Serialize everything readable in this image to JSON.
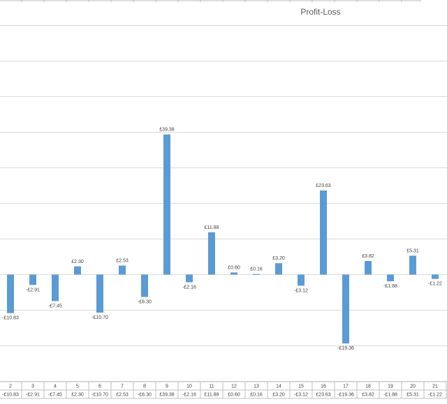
{
  "chart_data": {
    "type": "bar",
    "title": "Profit-Loss",
    "categories": [
      "2",
      "3",
      "4",
      "5",
      "6",
      "7",
      "8",
      "9",
      "10",
      "11",
      "12",
      "13",
      "14",
      "15",
      "16",
      "17",
      "18",
      "19",
      "20",
      "21"
    ],
    "values": [
      -10.83,
      -2.91,
      -7.45,
      2.3,
      -10.7,
      2.53,
      -6.3,
      39.38,
      -2.16,
      11.88,
      0.6,
      0.16,
      3.2,
      -3.12,
      23.63,
      -19.36,
      3.82,
      -1.88,
      5.31,
      -1.22
    ],
    "data_labels": [
      "-£10.83",
      "-£2.91",
      "-£7.45",
      "£2.30",
      "-£10.70",
      "£2.53",
      "-£6.30",
      "£39.38",
      "-£2.16",
      "£11.88",
      "£0.60",
      "£0.16",
      "£3.20",
      "-£3.12",
      "£23.63",
      "-£19.36",
      "£3.82",
      "-£1.88",
      "£5.31",
      "-£1.22"
    ],
    "table_labels": [
      "-£10.83",
      "-£2.91",
      "-£7.45",
      "£2.30",
      "-£10.70",
      "£2.53",
      "-£6.30",
      "£39.38",
      "-£2.16",
      "£11.88",
      "£0.60",
      "£0.16",
      "£3.20",
      "-£3.12",
      "£23.63",
      "-£19.36",
      "£3.82",
      "-£1.88",
      "£5.31",
      "-£1.22"
    ],
    "ylim": [
      -30,
      70
    ],
    "grid": true,
    "data_table": true,
    "colors": {
      "bar": "#5b9bd5",
      "grid": "#d9d9d9",
      "table_border": "#bfbfbf"
    }
  }
}
